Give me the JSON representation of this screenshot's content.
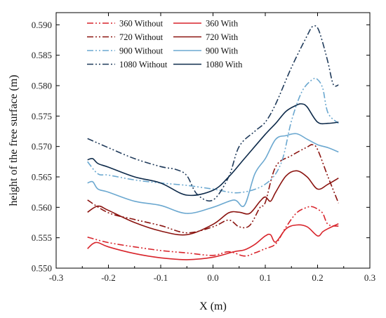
{
  "chart_data": {
    "type": "line",
    "title": "",
    "xlabel": "X (m)",
    "ylabel": "height of the free surface (m)",
    "xlim": [
      -0.3,
      0.3
    ],
    "ylim": [
      0.55,
      0.592
    ],
    "xticks": [
      "-0.3",
      "-0.2",
      "-0.1",
      "0.0",
      "0.1",
      "0.2",
      "0.3"
    ],
    "yticks": [
      "0.550",
      "0.555",
      "0.560",
      "0.565",
      "0.570",
      "0.575",
      "0.580",
      "0.585",
      "0.590"
    ],
    "legend_position": "top-left",
    "grid": false,
    "series": [
      {
        "name": "360 Without",
        "color": "#d8242b",
        "dash": "dashdotdot",
        "x": [
          -0.24,
          -0.2,
          -0.15,
          -0.1,
          -0.05,
          0.0,
          0.03,
          0.06,
          0.08,
          0.1,
          0.12,
          0.14,
          0.16,
          0.18,
          0.19,
          0.2,
          0.21,
          0.22,
          0.24
        ],
        "y": [
          0.5551,
          0.5542,
          0.5535,
          0.5529,
          0.5525,
          0.5521,
          0.5527,
          0.552,
          0.5525,
          0.5532,
          0.554,
          0.5568,
          0.5591,
          0.56,
          0.5601,
          0.5597,
          0.559,
          0.5572,
          0.5569
        ]
      },
      {
        "name": "360 With",
        "color": "#d8242b",
        "dash": "solid",
        "x": [
          -0.24,
          -0.23,
          -0.22,
          -0.2,
          -0.15,
          -0.1,
          -0.05,
          0.0,
          0.04,
          0.06,
          0.08,
          0.1,
          0.11,
          0.12,
          0.14,
          0.16,
          0.18,
          0.2,
          0.21,
          0.22,
          0.24
        ],
        "y": [
          0.5532,
          0.554,
          0.5542,
          0.5535,
          0.5524,
          0.5517,
          0.5514,
          0.5518,
          0.5527,
          0.553,
          0.5539,
          0.5553,
          0.5555,
          0.5543,
          0.5565,
          0.5571,
          0.5568,
          0.5553,
          0.556,
          0.5565,
          0.5573
        ]
      },
      {
        "name": "720 Without",
        "color": "#8b1410",
        "dash": "dashdotdot",
        "x": [
          -0.24,
          -0.2,
          -0.15,
          -0.1,
          -0.05,
          0.0,
          0.03,
          0.05,
          0.07,
          0.09,
          0.1,
          0.12,
          0.15,
          0.18,
          0.19,
          0.2,
          0.22,
          0.24
        ],
        "y": [
          0.5612,
          0.5591,
          0.558,
          0.557,
          0.5558,
          0.5568,
          0.5579,
          0.5568,
          0.557,
          0.56,
          0.5608,
          0.5667,
          0.5685,
          0.5699,
          0.5703,
          0.5695,
          0.565,
          0.5607
        ]
      },
      {
        "name": "720 With",
        "color": "#8b1410",
        "dash": "solid",
        "x": [
          -0.24,
          -0.22,
          -0.2,
          -0.15,
          -0.1,
          -0.05,
          0.0,
          0.03,
          0.05,
          0.07,
          0.09,
          0.1,
          0.11,
          0.12,
          0.14,
          0.16,
          0.18,
          0.2,
          0.22,
          0.24
        ],
        "y": [
          0.5592,
          0.5602,
          0.5595,
          0.5575,
          0.5561,
          0.5555,
          0.5572,
          0.5591,
          0.5592,
          0.559,
          0.561,
          0.5617,
          0.561,
          0.5625,
          0.5652,
          0.566,
          0.565,
          0.563,
          0.5638,
          0.5648
        ]
      },
      {
        "name": "900 Without",
        "color": "#6ba8d0",
        "dash": "dashdotdot",
        "x": [
          -0.24,
          -0.22,
          -0.2,
          -0.15,
          -0.1,
          -0.05,
          0.0,
          0.05,
          0.1,
          0.13,
          0.15,
          0.17,
          0.19,
          0.2,
          0.21,
          0.22,
          0.24
        ],
        "y": [
          0.5675,
          0.5655,
          0.5653,
          0.5645,
          0.564,
          0.5636,
          0.563,
          0.5624,
          0.5638,
          0.5672,
          0.5742,
          0.579,
          0.581,
          0.581,
          0.5795,
          0.5755,
          0.5738
        ]
      },
      {
        "name": "900 With",
        "color": "#6ba8d0",
        "dash": "solid",
        "x": [
          -0.24,
          -0.23,
          -0.22,
          -0.2,
          -0.15,
          -0.1,
          -0.05,
          0.0,
          0.04,
          0.06,
          0.08,
          0.1,
          0.12,
          0.14,
          0.16,
          0.18,
          0.2,
          0.22,
          0.24
        ],
        "y": [
          0.564,
          0.5642,
          0.563,
          0.5625,
          0.561,
          0.5603,
          0.559,
          0.56,
          0.5612,
          0.5603,
          0.5655,
          0.568,
          0.5712,
          0.5718,
          0.5721,
          0.5712,
          0.5703,
          0.5698,
          0.5691
        ]
      },
      {
        "name": "1080 Without",
        "color": "#1f3a5a",
        "dash": "dashdotdot",
        "x": [
          -0.24,
          -0.2,
          -0.15,
          -0.1,
          -0.07,
          -0.05,
          -0.03,
          0.0,
          0.03,
          0.05,
          0.08,
          0.1,
          0.12,
          0.15,
          0.18,
          0.19,
          0.2,
          0.21,
          0.22,
          0.23,
          0.24
        ],
        "y": [
          0.5713,
          0.5698,
          0.568,
          0.5667,
          0.5662,
          0.5652,
          0.5621,
          0.5612,
          0.565,
          0.57,
          0.5725,
          0.574,
          0.577,
          0.583,
          0.5882,
          0.5897,
          0.5895,
          0.587,
          0.5838,
          0.5802,
          0.5801
        ]
      },
      {
        "name": "1080 With",
        "color": "#0d2a4a",
        "dash": "solid",
        "x": [
          -0.24,
          -0.23,
          -0.22,
          -0.2,
          -0.15,
          -0.1,
          -0.05,
          0.0,
          0.03,
          0.06,
          0.1,
          0.12,
          0.14,
          0.16,
          0.17,
          0.18,
          0.2,
          0.22,
          0.24
        ],
        "y": [
          0.5678,
          0.568,
          0.5672,
          0.5666,
          0.565,
          0.564,
          0.562,
          0.5628,
          0.565,
          0.568,
          0.572,
          0.5738,
          0.5758,
          0.5768,
          0.577,
          0.5765,
          0.574,
          0.5738,
          0.574
        ]
      }
    ]
  }
}
